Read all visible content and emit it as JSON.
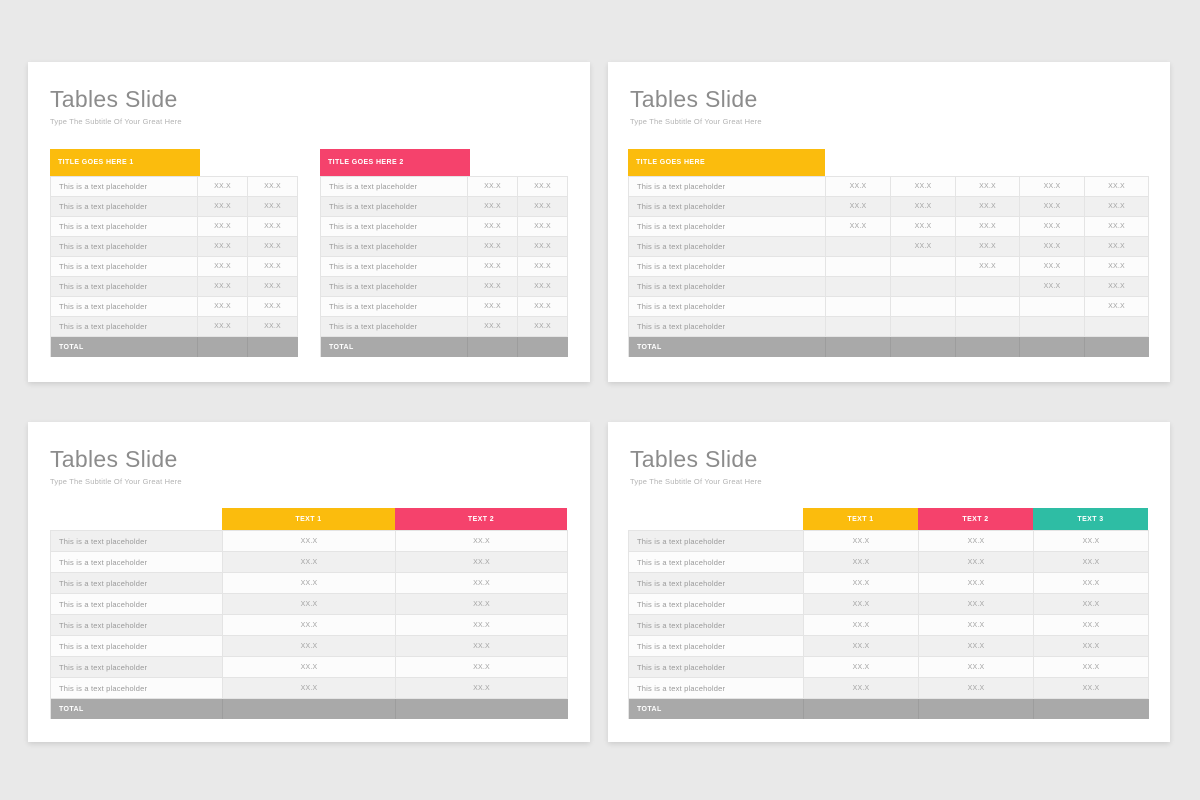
{
  "colors": {
    "yellow": "#FBBC0D",
    "pink": "#F5426C",
    "teal": "#2EBDA4",
    "total_gray": "#A9A9A9",
    "page_background": "#E9E9E9",
    "card_background": "#FFFFFF"
  },
  "slides": [
    {
      "title": "Tables Slide",
      "subtitle": "Type The Subtitle Of Your Great Here",
      "tables": [
        {
          "header": {
            "label": "TITLE GOES HERE 1",
            "color": "yellow"
          },
          "total_label": "TOTAL",
          "rows": [
            {
              "label": "This is a text placeholder",
              "values": [
                "XX.X",
                "XX.X"
              ]
            },
            {
              "label": "This is a text placeholder",
              "values": [
                "XX.X",
                "XX.X"
              ]
            },
            {
              "label": "This is a text placeholder",
              "values": [
                "XX.X",
                "XX.X"
              ]
            },
            {
              "label": "This is a text placeholder",
              "values": [
                "XX.X",
                "XX.X"
              ]
            },
            {
              "label": "This is a text placeholder",
              "values": [
                "XX.X",
                "XX.X"
              ]
            },
            {
              "label": "This is a text placeholder",
              "values": [
                "XX.X",
                "XX.X"
              ]
            },
            {
              "label": "This is a text placeholder",
              "values": [
                "XX.X",
                "XX.X"
              ]
            },
            {
              "label": "This is a text placeholder",
              "values": [
                "XX.X",
                "XX.X"
              ]
            }
          ]
        },
        {
          "header": {
            "label": "TITLE GOES HERE 2",
            "color": "pink"
          },
          "total_label": "TOTAL",
          "rows": [
            {
              "label": "This is a text placeholder",
              "values": [
                "XX.X",
                "XX.X"
              ]
            },
            {
              "label": "This is a text placeholder",
              "values": [
                "XX.X",
                "XX.X"
              ]
            },
            {
              "label": "This is a text placeholder",
              "values": [
                "XX.X",
                "XX.X"
              ]
            },
            {
              "label": "This is a text placeholder",
              "values": [
                "XX.X",
                "XX.X"
              ]
            },
            {
              "label": "This is a text placeholder",
              "values": [
                "XX.X",
                "XX.X"
              ]
            },
            {
              "label": "This is a text placeholder",
              "values": [
                "XX.X",
                "XX.X"
              ]
            },
            {
              "label": "This is a text placeholder",
              "values": [
                "XX.X",
                "XX.X"
              ]
            },
            {
              "label": "This is a text placeholder",
              "values": [
                "XX.X",
                "XX.X"
              ]
            }
          ]
        }
      ]
    },
    {
      "title": "Tables Slide",
      "subtitle": "Type The Subtitle Of Your Great Here",
      "tables": [
        {
          "header": {
            "label": "TITLE GOES HERE",
            "color": "yellow"
          },
          "total_label": "TOTAL",
          "rows": [
            {
              "label": "This is a text placeholder",
              "values": [
                "XX.X",
                "XX.X",
                "XX.X",
                "XX.X",
                "XX.X"
              ]
            },
            {
              "label": "This is a text placeholder",
              "values": [
                "XX.X",
                "XX.X",
                "XX.X",
                "XX.X",
                "XX.X"
              ]
            },
            {
              "label": "This is a text placeholder",
              "values": [
                "XX.X",
                "XX.X",
                "XX.X",
                "XX.X",
                "XX.X"
              ]
            },
            {
              "label": "This is a text placeholder",
              "values": [
                "",
                "XX.X",
                "XX.X",
                "XX.X",
                "XX.X"
              ]
            },
            {
              "label": "This is a text placeholder",
              "values": [
                "",
                "",
                "XX.X",
                "XX.X",
                "XX.X"
              ]
            },
            {
              "label": "This is a text placeholder",
              "values": [
                "",
                "",
                "",
                "XX.X",
                "XX.X"
              ]
            },
            {
              "label": "This is a text placeholder",
              "values": [
                "",
                "",
                "",
                "",
                "XX.X"
              ]
            },
            {
              "label": "This is a text placeholder",
              "values": [
                "",
                "",
                "",
                "",
                ""
              ]
            }
          ]
        }
      ]
    },
    {
      "title": "Tables Slide",
      "subtitle": "Type The Subtitle Of Your Great Here",
      "tables": [
        {
          "column_headers": [
            {
              "label": "TEXT 1",
              "color": "yellow"
            },
            {
              "label": "TEXT 2",
              "color": "pink"
            }
          ],
          "total_label": "TOTAL",
          "rows": [
            {
              "label": "This is a text placeholder",
              "values": [
                "XX.X",
                "XX.X"
              ]
            },
            {
              "label": "This is a text placeholder",
              "values": [
                "XX.X",
                "XX.X"
              ]
            },
            {
              "label": "This is a text placeholder",
              "values": [
                "XX.X",
                "XX.X"
              ]
            },
            {
              "label": "This is a text placeholder",
              "values": [
                "XX.X",
                "XX.X"
              ]
            },
            {
              "label": "This is a text placeholder",
              "values": [
                "XX.X",
                "XX.X"
              ]
            },
            {
              "label": "This is a text placeholder",
              "values": [
                "XX.X",
                "XX.X"
              ]
            },
            {
              "label": "This is a text placeholder",
              "values": [
                "XX.X",
                "XX.X"
              ]
            },
            {
              "label": "This is a text placeholder",
              "values": [
                "XX.X",
                "XX.X"
              ]
            }
          ]
        }
      ]
    },
    {
      "title": "Tables Slide",
      "subtitle": "Type The Subtitle Of Your Great Here",
      "tables": [
        {
          "column_headers": [
            {
              "label": "TEXT 1",
              "color": "yellow"
            },
            {
              "label": "TEXT 2",
              "color": "pink"
            },
            {
              "label": "TEXT 3",
              "color": "teal"
            }
          ],
          "total_label": "TOTAL",
          "rows": [
            {
              "label": "This is a text placeholder",
              "values": [
                "XX.X",
                "XX.X",
                "XX.X"
              ]
            },
            {
              "label": "This is a text placeholder",
              "values": [
                "XX.X",
                "XX.X",
                "XX.X"
              ]
            },
            {
              "label": "This is a text placeholder",
              "values": [
                "XX.X",
                "XX.X",
                "XX.X"
              ]
            },
            {
              "label": "This is a text placeholder",
              "values": [
                "XX.X",
                "XX.X",
                "XX.X"
              ]
            },
            {
              "label": "This is a text placeholder",
              "values": [
                "XX.X",
                "XX.X",
                "XX.X"
              ]
            },
            {
              "label": "This is a text placeholder",
              "values": [
                "XX.X",
                "XX.X",
                "XX.X"
              ]
            },
            {
              "label": "This is a text placeholder",
              "values": [
                "XX.X",
                "XX.X",
                "XX.X"
              ]
            },
            {
              "label": "This is a text placeholder",
              "values": [
                "XX.X",
                "XX.X",
                "XX.X"
              ]
            }
          ]
        }
      ]
    }
  ]
}
